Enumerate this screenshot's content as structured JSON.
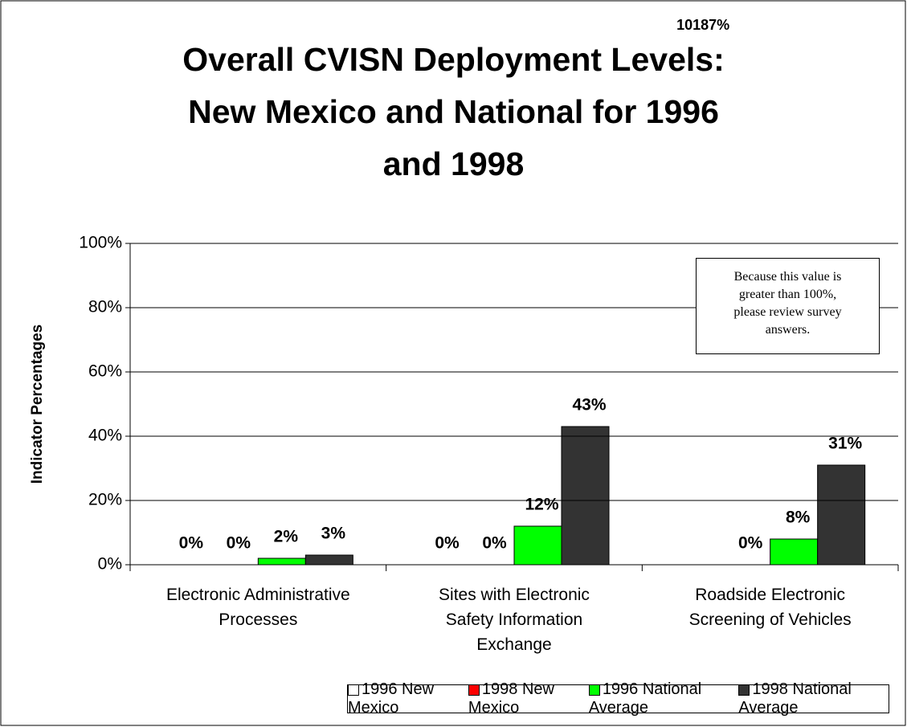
{
  "chart_data": {
    "type": "bar",
    "title": "Overall CVISN Deployment Levels:\nNew Mexico and National for 1996\nand 1998",
    "ylabel": "Indicator Percentages",
    "categories": [
      "Electronic Administrative\nProcesses",
      "Sites with Electronic\nSafety Information\nExchange",
      "Roadside Electronic\nScreening of Vehicles"
    ],
    "series": [
      {
        "name": "1996 New Mexico",
        "color": "#ffffff",
        "values": [
          0,
          0,
          10187
        ],
        "value_labels": [
          "0%",
          "0%",
          "10187%"
        ]
      },
      {
        "name": "1998 New Mexico",
        "color": "#ff0000",
        "values": [
          0,
          0,
          0
        ],
        "value_labels": [
          "0%",
          "0%",
          "0%"
        ]
      },
      {
        "name": "1996 National Average",
        "color": "#00ff00",
        "values": [
          2,
          12,
          8
        ],
        "value_labels": [
          "2%",
          "12%",
          "8%"
        ]
      },
      {
        "name": "1998 National Average",
        "color": "#333333",
        "values": [
          3,
          43,
          31
        ],
        "value_labels": [
          "3%",
          "43%",
          "31%"
        ]
      }
    ],
    "ylim": [
      0,
      100
    ],
    "yticks": [
      {
        "value": 0,
        "label": "0%"
      },
      {
        "value": 20,
        "label": "20%"
      },
      {
        "value": 40,
        "label": "40%"
      },
      {
        "value": 60,
        "label": "60%"
      },
      {
        "value": 80,
        "label": "80%"
      },
      {
        "value": 100,
        "label": "100%"
      }
    ],
    "grid": true,
    "legend": "bottom",
    "annotation": "Because this value is\ngreater than 100%,\nplease review survey\nanswers."
  }
}
